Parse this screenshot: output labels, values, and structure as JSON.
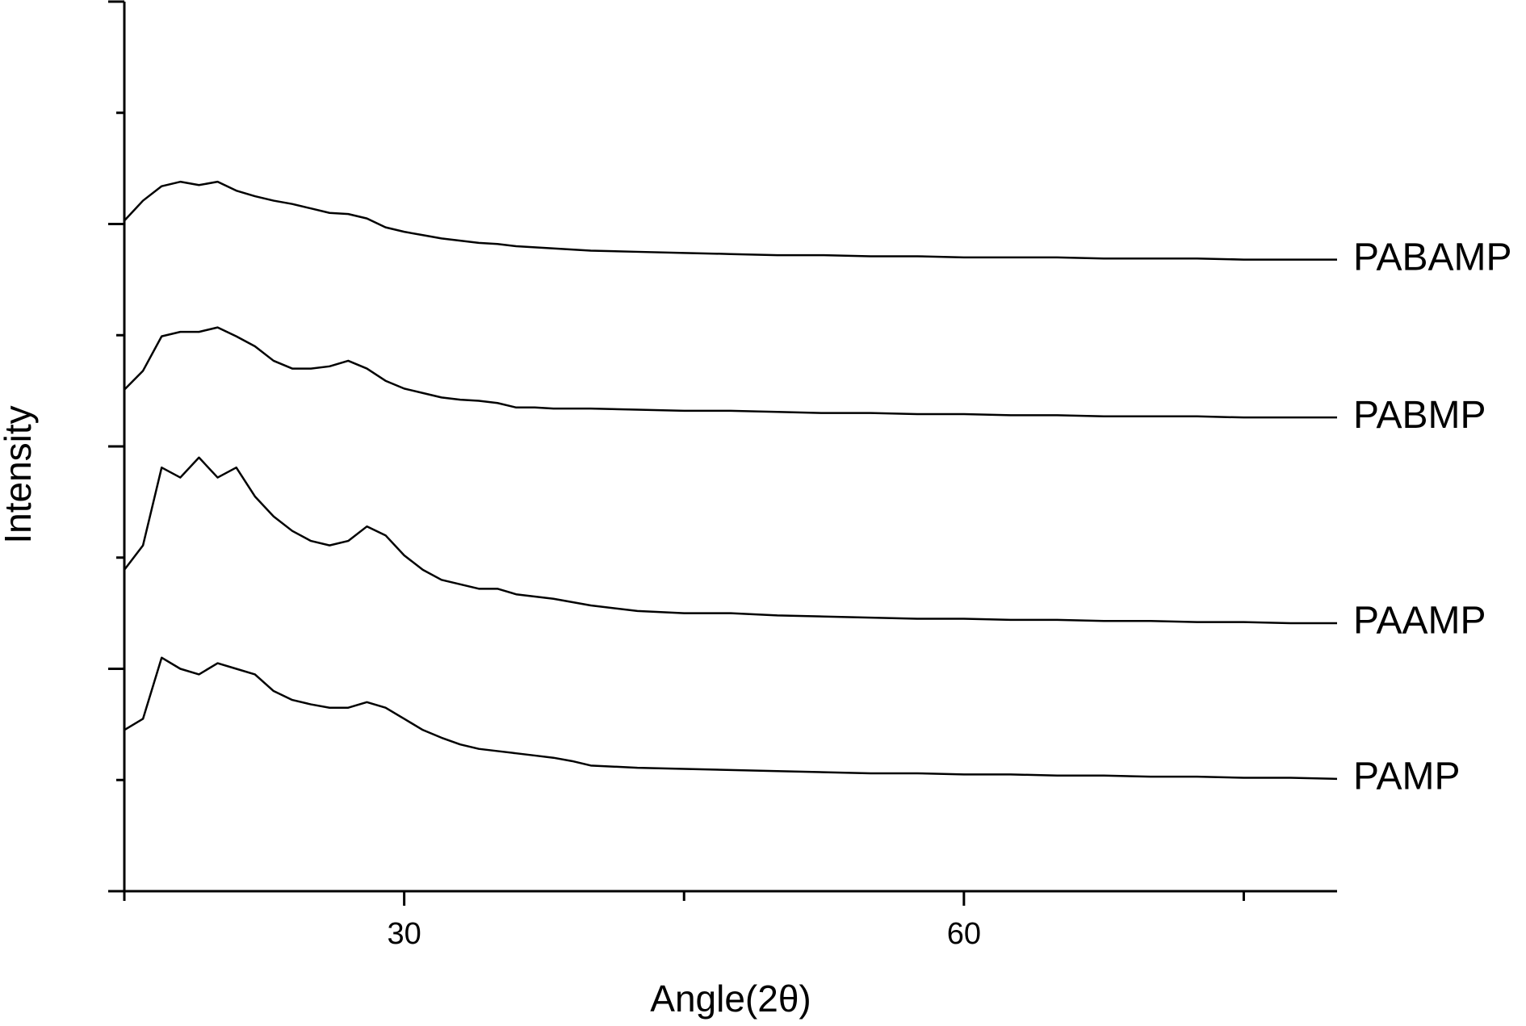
{
  "chart_data": {
    "type": "line",
    "xlabel": "Angle(2θ)",
    "ylabel": "Intensity",
    "x": [
      15,
      16,
      17,
      18,
      19,
      20,
      21,
      22,
      23,
      24,
      25,
      26,
      27,
      28,
      29,
      30,
      31,
      32,
      33,
      34,
      35,
      36,
      37,
      38,
      39,
      40,
      42.5,
      45,
      47.5,
      50,
      52.5,
      55,
      57.5,
      60,
      62.5,
      65,
      67.5,
      70,
      72.5,
      75,
      77.5,
      80
    ],
    "series": [
      {
        "name": "PAMP",
        "color": "#000000",
        "values": [
          1.45,
          1.55,
          2.1,
          2.0,
          1.95,
          2.05,
          2.0,
          1.95,
          1.8,
          1.72,
          1.68,
          1.65,
          1.65,
          1.7,
          1.65,
          1.55,
          1.45,
          1.38,
          1.32,
          1.28,
          1.26,
          1.24,
          1.22,
          1.2,
          1.17,
          1.13,
          1.11,
          1.1,
          1.09,
          1.08,
          1.07,
          1.06,
          1.06,
          1.05,
          1.05,
          1.04,
          1.04,
          1.03,
          1.03,
          1.02,
          1.02,
          1.01
        ]
      },
      {
        "name": "PAAMP",
        "color": "#000000",
        "values": [
          2.89,
          3.11,
          3.81,
          3.72,
          3.9,
          3.72,
          3.81,
          3.55,
          3.37,
          3.24,
          3.15,
          3.11,
          3.15,
          3.28,
          3.2,
          3.02,
          2.89,
          2.8,
          2.76,
          2.72,
          2.72,
          2.67,
          2.65,
          2.63,
          2.6,
          2.57,
          2.52,
          2.5,
          2.5,
          2.48,
          2.47,
          2.46,
          2.45,
          2.45,
          2.44,
          2.44,
          2.43,
          2.43,
          2.42,
          2.42,
          2.41,
          2.41
        ]
      },
      {
        "name": "PABMP",
        "color": "#000000",
        "values": [
          4.51,
          4.68,
          4.99,
          5.03,
          5.03,
          5.07,
          4.99,
          4.9,
          4.77,
          4.7,
          4.7,
          4.72,
          4.77,
          4.7,
          4.59,
          4.52,
          4.48,
          4.44,
          4.42,
          4.41,
          4.39,
          4.35,
          4.35,
          4.34,
          4.34,
          4.34,
          4.33,
          4.32,
          4.32,
          4.31,
          4.3,
          4.3,
          4.29,
          4.29,
          4.28,
          4.28,
          4.27,
          4.27,
          4.27,
          4.26,
          4.26,
          4.26
        ]
      },
      {
        "name": "PABAMP",
        "color": "#000000",
        "values": [
          6.03,
          6.21,
          6.34,
          6.38,
          6.35,
          6.38,
          6.3,
          6.25,
          6.21,
          6.18,
          6.14,
          6.1,
          6.09,
          6.05,
          5.97,
          5.93,
          5.9,
          5.87,
          5.85,
          5.83,
          5.82,
          5.8,
          5.79,
          5.78,
          5.77,
          5.76,
          5.75,
          5.74,
          5.73,
          5.72,
          5.72,
          5.71,
          5.71,
          5.7,
          5.7,
          5.7,
          5.69,
          5.69,
          5.69,
          5.68,
          5.68,
          5.68
        ]
      }
    ],
    "xlim": [
      15,
      80
    ],
    "xticks": [
      30,
      60
    ],
    "x_minor_tick_marks": [
      15,
      45,
      75
    ],
    "ylim": [
      0,
      8
    ],
    "y_tick_marks": [
      0,
      2,
      4,
      6,
      8
    ],
    "y_minor_tick_marks": [
      1,
      3,
      5,
      7
    ],
    "grid": false
  }
}
